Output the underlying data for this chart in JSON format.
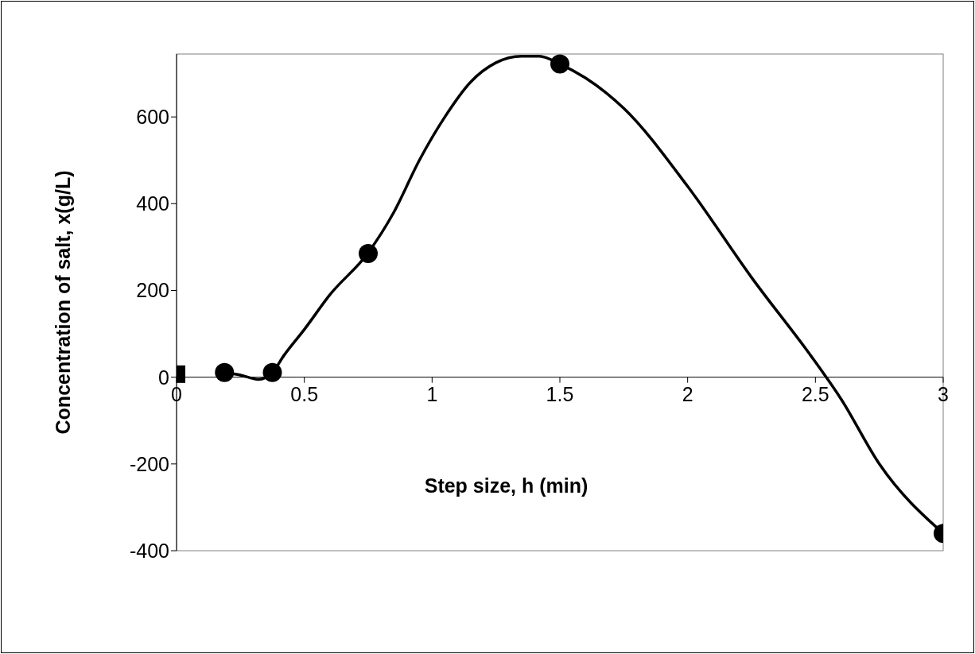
{
  "chart_data": {
    "type": "line",
    "xlabel": "Step size, h (min)",
    "ylabel": "Concentration of salt, x(g/L)",
    "xlim": [
      0,
      3
    ],
    "xticks": [
      0,
      0.5,
      1,
      1.5,
      2,
      2.5,
      3
    ],
    "ylim": [
      -400,
      745
    ],
    "yticks": [
      -400,
      -200,
      0,
      200,
      400,
      600
    ],
    "series": [
      {
        "marker": "none",
        "color": "#000000",
        "x": [
          0.1875,
          0.25,
          0.32,
          0.375,
          0.42,
          0.5,
          0.6,
          0.75,
          0.85,
          0.95,
          1.05,
          1.15,
          1.25,
          1.35,
          1.42,
          1.5,
          1.6,
          1.75,
          2.0,
          2.25,
          2.5,
          2.6,
          2.75,
          3
        ],
        "values": [
          11,
          5,
          -5,
          11,
          50,
          110,
          190,
          287,
          380,
          500,
          600,
          680,
          725,
          740,
          740,
          722,
          690,
          620,
          440,
          230,
          35,
          -50,
          -200,
          -360
        ]
      },
      {
        "type": "scatter",
        "marker": "circle",
        "color": "#000000",
        "x": [
          0.1875,
          0.375,
          0.75,
          1.5,
          3
        ],
        "values": [
          11,
          11,
          285,
          722,
          -360
        ]
      },
      {
        "type": "scatter",
        "marker": "square",
        "color": "#000000",
        "x": [
          0
        ],
        "values": [
          7
        ]
      }
    ]
  }
}
